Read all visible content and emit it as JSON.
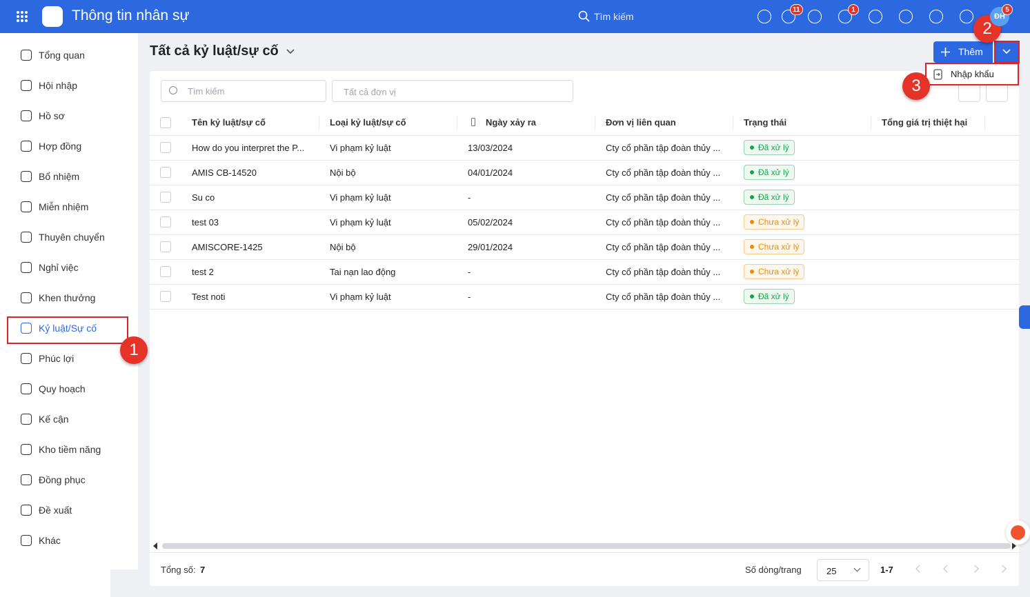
{
  "header": {
    "title": "Thông tin nhân sự",
    "search_placeholder": "Tìm kiếm",
    "badges": [
      "11",
      "1",
      "5"
    ],
    "avatar": "ĐH"
  },
  "sidebar": {
    "items": [
      "Tổng quan",
      "Hội nhập",
      "Hồ sơ",
      "Hợp đồng",
      "Bổ nhiệm",
      "Miễn nhiệm",
      "Thuyên chuyển",
      "Nghỉ việc",
      "Khen thưởng",
      "Kỷ luật/Sự cố",
      "Phúc lợi",
      "Quy hoạch",
      "Kế cận",
      "Kho tiềm năng",
      "Đồng phục",
      "Đề xuất",
      "Khác"
    ],
    "active": 9
  },
  "page": {
    "title": "Tất cả kỷ luật/sự cố",
    "add_button": "Thêm",
    "menu_item": "Nhập khẩu",
    "steps": [
      "1",
      "2",
      "3"
    ]
  },
  "filters": {
    "search_placeholder": "Tìm kiếm",
    "unit_placeholder": "Tất cả đơn vị"
  },
  "table": {
    "columns": [
      "Tên kỷ luật/sự cố",
      "Loại kỷ luật/sự cố",
      "Ngày xảy ra",
      "Đơn vị liên quan",
      "Trạng thái",
      "Tổng giá trị thiệt hại"
    ],
    "rows": [
      {
        "cells": [
          "How do you interpret the P...",
          "Vi phạm kỷ luật",
          "13/03/2024",
          "Cty cổ phần tập đoàn thủy ...",
          "Đã xử lý"
        ],
        "status_color": "#1aa34a"
      },
      {
        "cells": [
          "AMIS CB-14520",
          "Nội bộ",
          "04/01/2024",
          "Cty cổ phần tập đoàn thủy ...",
          "Đã xử lý"
        ],
        "status_color": "#1aa34a"
      },
      {
        "cells": [
          "Su co",
          "Vi phạm kỷ luật",
          "-",
          "Cty cổ phần tập đoàn thủy ...",
          "Đã xử lý"
        ],
        "status_color": "#1aa34a"
      },
      {
        "cells": [
          "test 03",
          "Vi phạm kỷ luật",
          "05/02/2024",
          "Cty cổ phần tập đoàn thủy ...",
          "Chưa xử lý"
        ],
        "status_color": "#f08c00"
      },
      {
        "cells": [
          "AMISCORE-1425",
          "Nội bộ",
          "29/01/2024",
          "Cty cổ phần tập đoàn thủy ...",
          "Chưa xử lý"
        ],
        "status_color": "#f08c00"
      },
      {
        "cells": [
          "test 2",
          "Tai nạn lao động",
          "-",
          "Cty cổ phần tập đoàn thủy ...",
          "Chưa xử lý"
        ],
        "status_color": "#f08c00"
      },
      {
        "cells": [
          "Test noti",
          "Vi phạm kỷ luật",
          "-",
          "Cty cổ phần tập đoàn thủy ...",
          "Đã xử lý"
        ],
        "status_color": "#1aa34a"
      }
    ]
  },
  "footer": {
    "total_label": "Tổng số:",
    "total": 7,
    "page_size_label": "Số dòng/trang",
    "page_size": 25,
    "range": "1-7"
  }
}
